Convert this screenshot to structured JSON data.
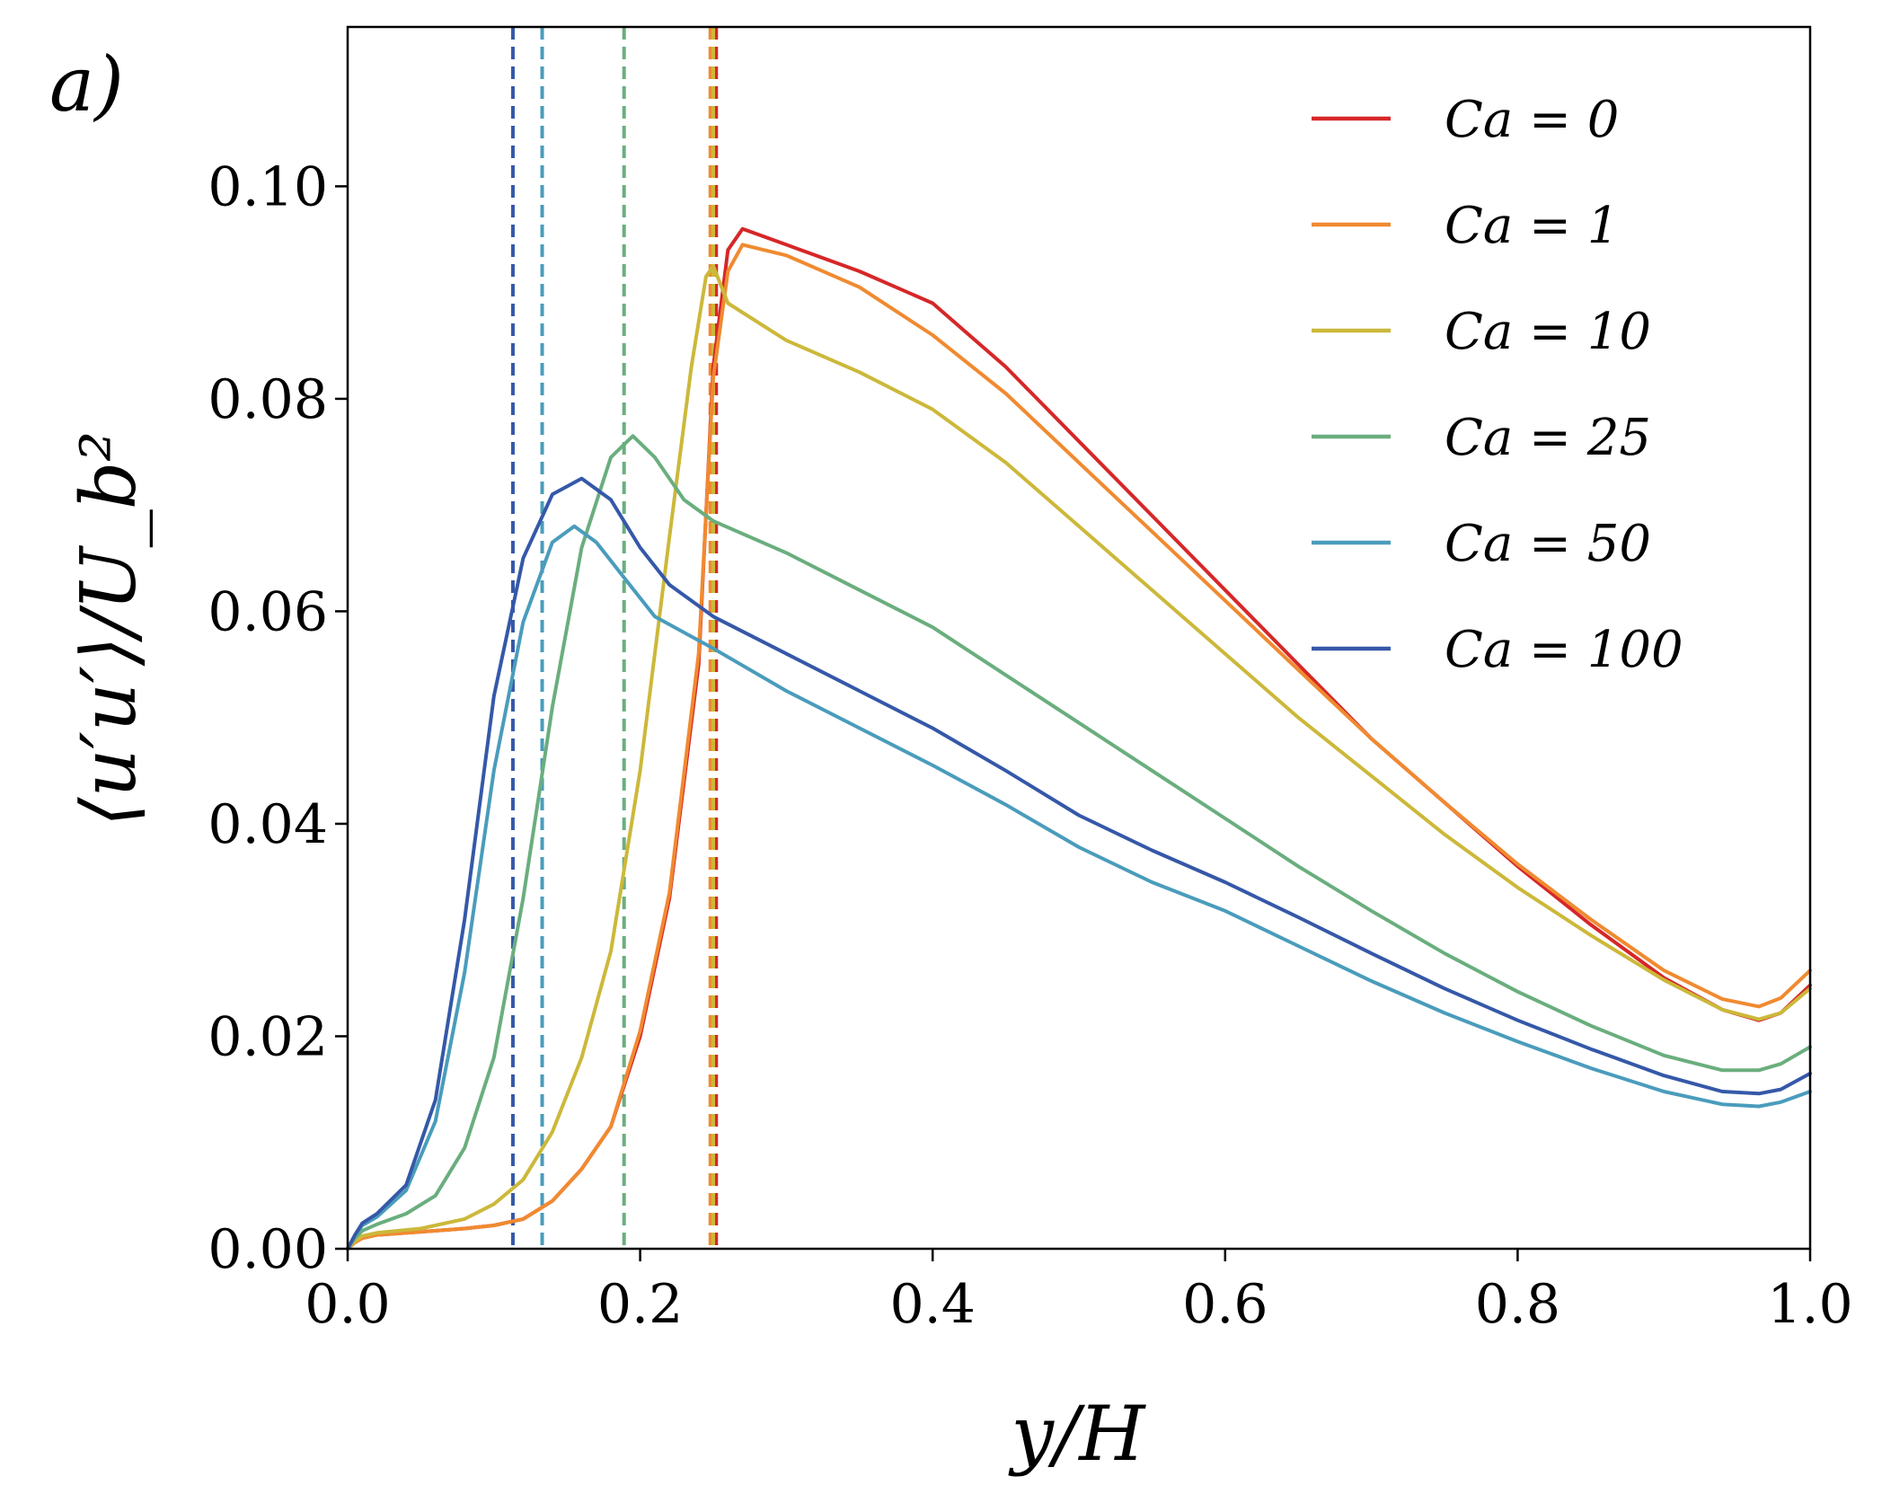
{
  "chart_data": {
    "type": "line",
    "panel_label": "a)",
    "xlabel": "y/H",
    "ylabel": "⟨u′u′⟩/U_b²",
    "xlim": [
      0.0,
      1.0
    ],
    "ylim": [
      0.0,
      0.115
    ],
    "xticks": [
      "0.0",
      "0.2",
      "0.4",
      "0.6",
      "0.8",
      "1.0"
    ],
    "yticks": [
      "0.00",
      "0.02",
      "0.04",
      "0.06",
      "0.08",
      "0.10"
    ],
    "grid": false,
    "legend_position": "top-right",
    "series": [
      {
        "name": "Ca = 0",
        "color": "#d62728",
        "dashed_line_x": 0.252,
        "x": [
          0.0,
          0.005,
          0.01,
          0.02,
          0.05,
          0.08,
          0.1,
          0.12,
          0.14,
          0.16,
          0.18,
          0.2,
          0.22,
          0.24,
          0.25,
          0.26,
          0.27,
          0.3,
          0.35,
          0.4,
          0.45,
          0.5,
          0.55,
          0.6,
          0.65,
          0.7,
          0.75,
          0.8,
          0.85,
          0.9,
          0.94,
          0.965,
          0.98,
          1.0
        ],
        "values": [
          0.0,
          0.0006,
          0.001,
          0.0013,
          0.0016,
          0.0019,
          0.0022,
          0.0028,
          0.0045,
          0.0075,
          0.0115,
          0.02,
          0.033,
          0.055,
          0.083,
          0.094,
          0.096,
          0.0945,
          0.092,
          0.089,
          0.083,
          0.076,
          0.069,
          0.062,
          0.055,
          0.048,
          0.042,
          0.036,
          0.0305,
          0.0255,
          0.0225,
          0.0215,
          0.0222,
          0.0248
        ]
      },
      {
        "name": "Ca = 1",
        "color": "#f08a30",
        "dashed_line_x": 0.248,
        "x": [
          0.0,
          0.005,
          0.01,
          0.02,
          0.05,
          0.08,
          0.1,
          0.12,
          0.14,
          0.16,
          0.18,
          0.2,
          0.22,
          0.24,
          0.25,
          0.26,
          0.27,
          0.3,
          0.35,
          0.4,
          0.45,
          0.5,
          0.55,
          0.6,
          0.65,
          0.7,
          0.75,
          0.8,
          0.85,
          0.9,
          0.94,
          0.965,
          0.98,
          1.0
        ],
        "values": [
          0.0,
          0.0006,
          0.001,
          0.0013,
          0.0016,
          0.0019,
          0.0022,
          0.0028,
          0.0045,
          0.0075,
          0.0115,
          0.0205,
          0.0335,
          0.056,
          0.082,
          0.092,
          0.0945,
          0.0935,
          0.0905,
          0.086,
          0.0805,
          0.074,
          0.0675,
          0.061,
          0.0545,
          0.048,
          0.042,
          0.0362,
          0.031,
          0.0262,
          0.0235,
          0.0228,
          0.0236,
          0.0262
        ]
      },
      {
        "name": "Ca = 10",
        "color": "#ccb83a",
        "dashed_line_x": 0.25,
        "x": [
          0.0,
          0.005,
          0.01,
          0.02,
          0.05,
          0.08,
          0.1,
          0.12,
          0.14,
          0.16,
          0.18,
          0.2,
          0.22,
          0.235,
          0.245,
          0.25,
          0.26,
          0.3,
          0.35,
          0.4,
          0.45,
          0.5,
          0.55,
          0.6,
          0.65,
          0.7,
          0.75,
          0.8,
          0.85,
          0.9,
          0.94,
          0.965,
          0.98,
          1.0
        ],
        "values": [
          0.0,
          0.0007,
          0.0012,
          0.0015,
          0.0019,
          0.0028,
          0.0042,
          0.0065,
          0.011,
          0.018,
          0.028,
          0.045,
          0.067,
          0.083,
          0.0915,
          0.0925,
          0.089,
          0.0855,
          0.0825,
          0.079,
          0.074,
          0.068,
          0.062,
          0.056,
          0.05,
          0.0445,
          0.039,
          0.034,
          0.0295,
          0.0253,
          0.0225,
          0.0216,
          0.0222,
          0.0245
        ]
      },
      {
        "name": "Ca = 25",
        "color": "#6aae7e",
        "dashed_line_x": 0.189,
        "x": [
          0.0,
          0.005,
          0.01,
          0.02,
          0.04,
          0.06,
          0.08,
          0.1,
          0.12,
          0.14,
          0.16,
          0.18,
          0.195,
          0.21,
          0.23,
          0.25,
          0.3,
          0.35,
          0.4,
          0.45,
          0.5,
          0.55,
          0.6,
          0.65,
          0.7,
          0.75,
          0.8,
          0.85,
          0.9,
          0.94,
          0.965,
          0.98,
          1.0
        ],
        "values": [
          0.0,
          0.001,
          0.0017,
          0.0023,
          0.0033,
          0.005,
          0.0095,
          0.018,
          0.033,
          0.051,
          0.066,
          0.0745,
          0.0765,
          0.0745,
          0.0705,
          0.0685,
          0.0655,
          0.062,
          0.0585,
          0.054,
          0.0495,
          0.045,
          0.0405,
          0.036,
          0.0318,
          0.0278,
          0.0242,
          0.021,
          0.0182,
          0.0168,
          0.0168,
          0.0174,
          0.019
        ]
      },
      {
        "name": "Ca = 50",
        "color": "#4a9cbc",
        "dashed_line_x": 0.133,
        "x": [
          0.0,
          0.005,
          0.01,
          0.02,
          0.04,
          0.06,
          0.08,
          0.1,
          0.12,
          0.14,
          0.155,
          0.17,
          0.19,
          0.21,
          0.25,
          0.3,
          0.35,
          0.4,
          0.45,
          0.5,
          0.55,
          0.6,
          0.65,
          0.7,
          0.75,
          0.8,
          0.85,
          0.9,
          0.94,
          0.965,
          0.98,
          1.0
        ],
        "values": [
          0.0,
          0.0012,
          0.0022,
          0.003,
          0.0055,
          0.012,
          0.026,
          0.045,
          0.059,
          0.0665,
          0.068,
          0.0665,
          0.063,
          0.0595,
          0.0565,
          0.0525,
          0.049,
          0.0455,
          0.0418,
          0.0378,
          0.0345,
          0.0318,
          0.0285,
          0.0252,
          0.0222,
          0.0195,
          0.017,
          0.0148,
          0.0136,
          0.0134,
          0.0138,
          0.0148
        ]
      },
      {
        "name": "Ca = 100",
        "color": "#3558a8",
        "dashed_line_x": 0.113,
        "x": [
          0.0,
          0.005,
          0.01,
          0.02,
          0.04,
          0.06,
          0.08,
          0.1,
          0.12,
          0.14,
          0.16,
          0.18,
          0.2,
          0.22,
          0.25,
          0.3,
          0.35,
          0.4,
          0.45,
          0.5,
          0.55,
          0.6,
          0.65,
          0.7,
          0.75,
          0.8,
          0.85,
          0.9,
          0.94,
          0.965,
          0.98,
          1.0
        ],
        "values": [
          0.0,
          0.0013,
          0.0024,
          0.0033,
          0.006,
          0.014,
          0.031,
          0.052,
          0.065,
          0.071,
          0.0725,
          0.0705,
          0.066,
          0.0625,
          0.0595,
          0.056,
          0.0525,
          0.049,
          0.045,
          0.0408,
          0.0375,
          0.0345,
          0.0312,
          0.0278,
          0.0245,
          0.0215,
          0.0188,
          0.0163,
          0.0148,
          0.0146,
          0.015,
          0.0165
        ]
      }
    ]
  }
}
